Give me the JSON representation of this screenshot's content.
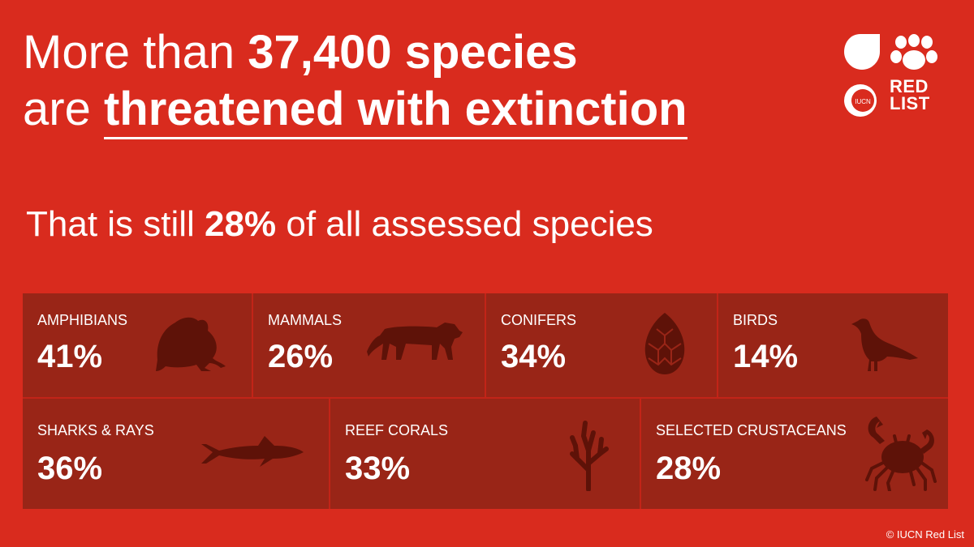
{
  "headline": {
    "line1_pre": "More than ",
    "line1_bold": "37,400 species",
    "line2_pre": "are ",
    "line2_underlined": "threatened with extinction"
  },
  "subline": {
    "pre": "That is still ",
    "bold": "28%",
    "post": " of all assessed species"
  },
  "logo": {
    "text_line1": "RED",
    "text_line2": "LIST",
    "emblem_text": "IUCN"
  },
  "groups": [
    {
      "label": "AMPHIBIANS",
      "value": "41%",
      "icon": "frog-icon"
    },
    {
      "label": "MAMMALS",
      "value": "26%",
      "icon": "tiger-icon"
    },
    {
      "label": "CONIFERS",
      "value": "34%",
      "icon": "pine-cone-icon"
    },
    {
      "label": "BIRDS",
      "value": "14%",
      "icon": "bird-icon"
    },
    {
      "label": "SHARKS & RAYS",
      "value": "36%",
      "icon": "shark-icon"
    },
    {
      "label": "REEF CORALS",
      "value": "33%",
      "icon": "coral-icon"
    },
    {
      "label": "SELECTED CRUSTACEANS",
      "value": "28%",
      "icon": "crab-icon"
    }
  ],
  "copyright": "© IUCN Red List",
  "colors": {
    "background": "#d92b1e",
    "tile": "#992517",
    "silhouette": "#5e1208"
  }
}
